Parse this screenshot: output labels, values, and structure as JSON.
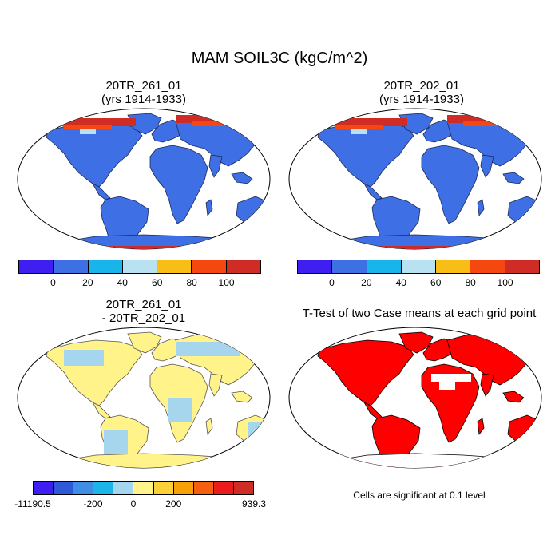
{
  "title": "MAM SOIL3C (kgC/m^2)",
  "panels": {
    "top_left": {
      "title_line1": "20TR_261_01",
      "title_line2": "(yrs 1914-1933)"
    },
    "top_right": {
      "title_line1": "20TR_202_01",
      "title_line2": "(yrs 1914-1933)"
    },
    "bottom_left": {
      "title_line1": "20TR_261_01",
      "title_line2": "- 20TR_202_01"
    },
    "bottom_right": {
      "title": "T-Test of two Case means at each grid point"
    }
  },
  "colorbar_top": {
    "colors": [
      "#3f1ef2",
      "#3e6fe4",
      "#18b4ea",
      "#b8e1f1",
      "#f9bd18",
      "#f74710",
      "#d02c26"
    ],
    "labels": [
      "0",
      "20",
      "40",
      "60",
      "80",
      "100"
    ]
  },
  "colorbar_bottom": {
    "colors": [
      "#3f1ef2",
      "#2f59d9",
      "#3f8ee6",
      "#1bb5ea",
      "#a6d6ee",
      "#fff38a",
      "#fbd13a",
      "#f7a008",
      "#f75f10",
      "#ec1c1c",
      "#d02c26"
    ],
    "labels": [
      "-11190.5",
      "-200",
      "0",
      "200",
      "939.3"
    ]
  },
  "map_colors": {
    "ocean": "#ffffff",
    "land_base": "#3e6fe4",
    "diff_land": "#fff38a",
    "diff_patch": "#a6d6ee",
    "signif": "#ff0000"
  },
  "note": "Cells are significant at 0.1 level"
}
